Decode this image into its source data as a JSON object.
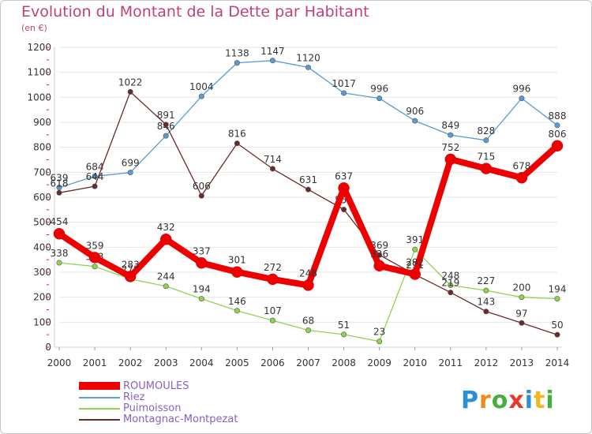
{
  "header": {
    "title": "Evolution du Montant de la Dette par Habitant",
    "unit": "(en €)"
  },
  "logo": {
    "text": "Proxiti"
  },
  "chart_data": {
    "type": "line",
    "title": "Evolution du Montant de la Dette par Habitant",
    "subtitle": "(en €)",
    "xlabel": "",
    "ylabel": "",
    "x": [
      "2000",
      "2001",
      "2002",
      "2003",
      "2004",
      "2005",
      "2006",
      "2007",
      "2008",
      "2009",
      "2010",
      "2011",
      "2012",
      "2013",
      "2014"
    ],
    "ylim": [
      0,
      1200
    ],
    "yticks": [
      0,
      100,
      200,
      300,
      400,
      500,
      600,
      700,
      800,
      900,
      1000,
      1100,
      1200
    ],
    "grid": "horizontal",
    "legend_position": "bottom-left",
    "series": [
      {
        "name": "ROUMOULES",
        "color": "#ee0000",
        "values": [
          454,
          359,
          283,
          432,
          337,
          301,
          272,
          248,
          637,
          326,
          292,
          752,
          715,
          678,
          806
        ],
        "labels": [
          "454",
          "359",
          "283",
          "432",
          "337",
          "301",
          "272",
          "248",
          "637",
          "326",
          "292",
          "752",
          "715",
          "678",
          "806"
        ]
      },
      {
        "name": "Riez",
        "color": "#5b9bd5",
        "values": [
          639,
          684,
          699,
          846,
          1004,
          1138,
          1147,
          1120,
          1017,
          996,
          906,
          849,
          828,
          996,
          888
        ],
        "labels": [
          "639",
          "684",
          "699",
          "846",
          "1004",
          "1138",
          "1147",
          "1120",
          "1017",
          "996",
          "906",
          "849",
          "828",
          "996",
          "888"
        ]
      },
      {
        "name": "Puimoisson",
        "color": "#8fd44f",
        "values": [
          338,
          323,
          273,
          244,
          194,
          146,
          107,
          68,
          51,
          23,
          391,
          248,
          227,
          200,
          194
        ],
        "labels": [
          "338",
          "323",
          "273",
          "244",
          "194",
          "146",
          "107",
          "68",
          "51",
          "23",
          "391",
          "248",
          "227",
          "200",
          "194"
        ]
      },
      {
        "name": "Montagnac-Montpezat",
        "color": "#6b2a2a",
        "values": [
          618,
          644,
          1022,
          891,
          606,
          816,
          714,
          631,
          551,
          369,
          291,
          219,
          143,
          97,
          50
        ],
        "labels": [
          "618",
          "644",
          "1022",
          "891",
          "606",
          "816",
          "714",
          "631",
          "551",
          "369",
          "291",
          "219",
          "143",
          "97",
          "50"
        ]
      }
    ]
  }
}
